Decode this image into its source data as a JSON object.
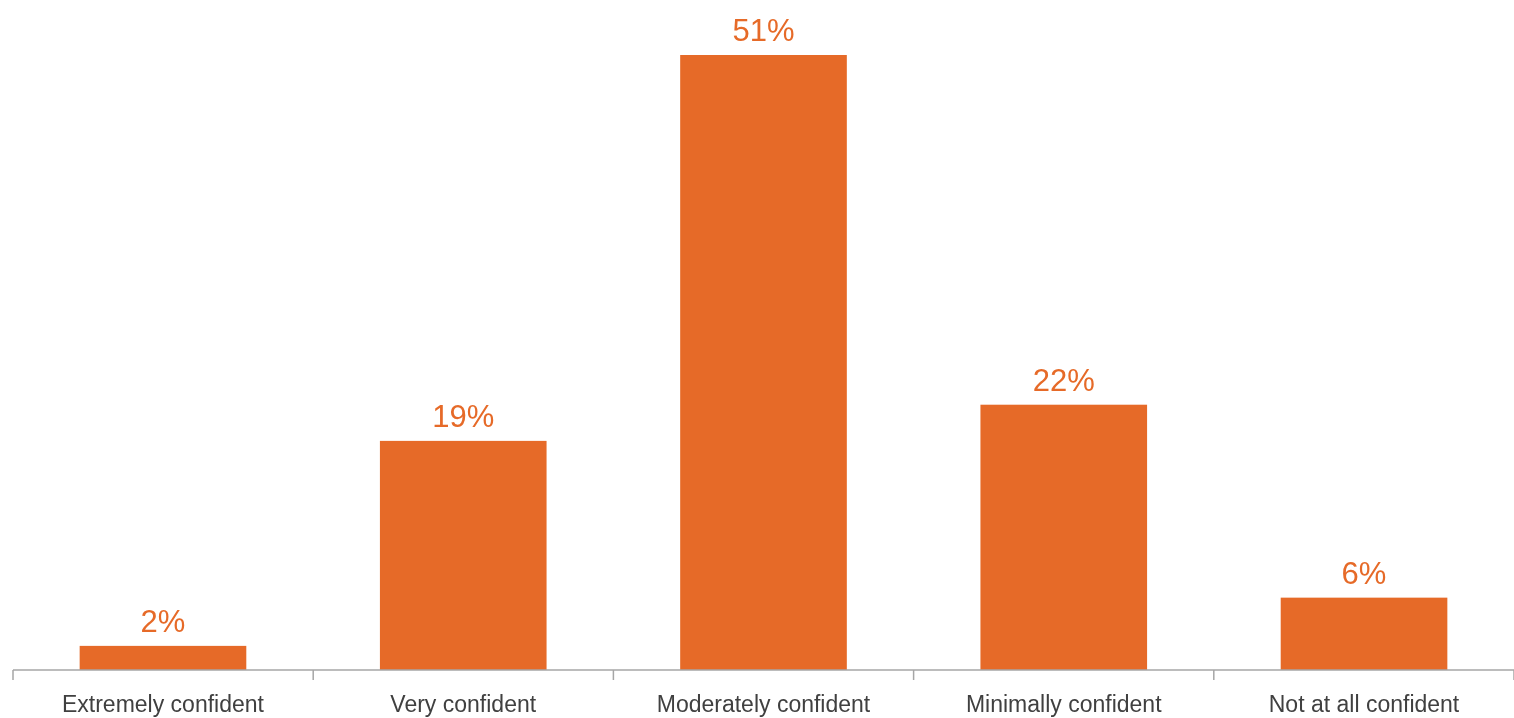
{
  "chart_data": {
    "type": "bar",
    "categories": [
      "Extremely confident",
      "Very confident",
      "Moderately confident",
      "Minimally confident",
      "Not at all confident"
    ],
    "values": [
      2,
      19,
      51,
      22,
      6
    ],
    "value_labels": [
      "2%",
      "19%",
      "51%",
      "22%",
      "6%"
    ],
    "color": "#e66a28"
  }
}
